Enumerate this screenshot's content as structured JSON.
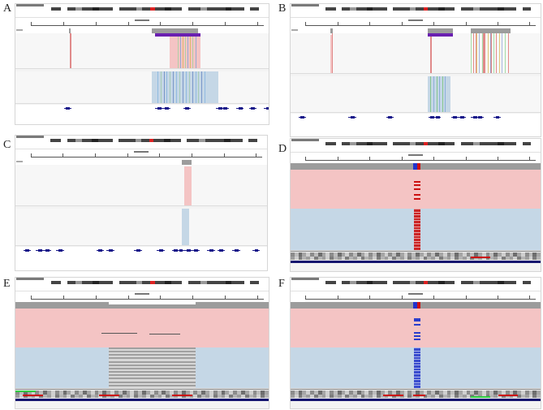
{
  "figure": {
    "panel_labels": [
      "A",
      "B",
      "C",
      "D",
      "E",
      "F"
    ]
  },
  "colors": {
    "read_forward": "#f4c4c4",
    "read_reverse": "#c5d7e6",
    "coverage": "#9c9c9c",
    "gene": "#1a1a8a",
    "mismatch_red": "#cc1111",
    "mismatch_blue": "#2a3dcc",
    "ideogram_dark": "#444444"
  }
}
